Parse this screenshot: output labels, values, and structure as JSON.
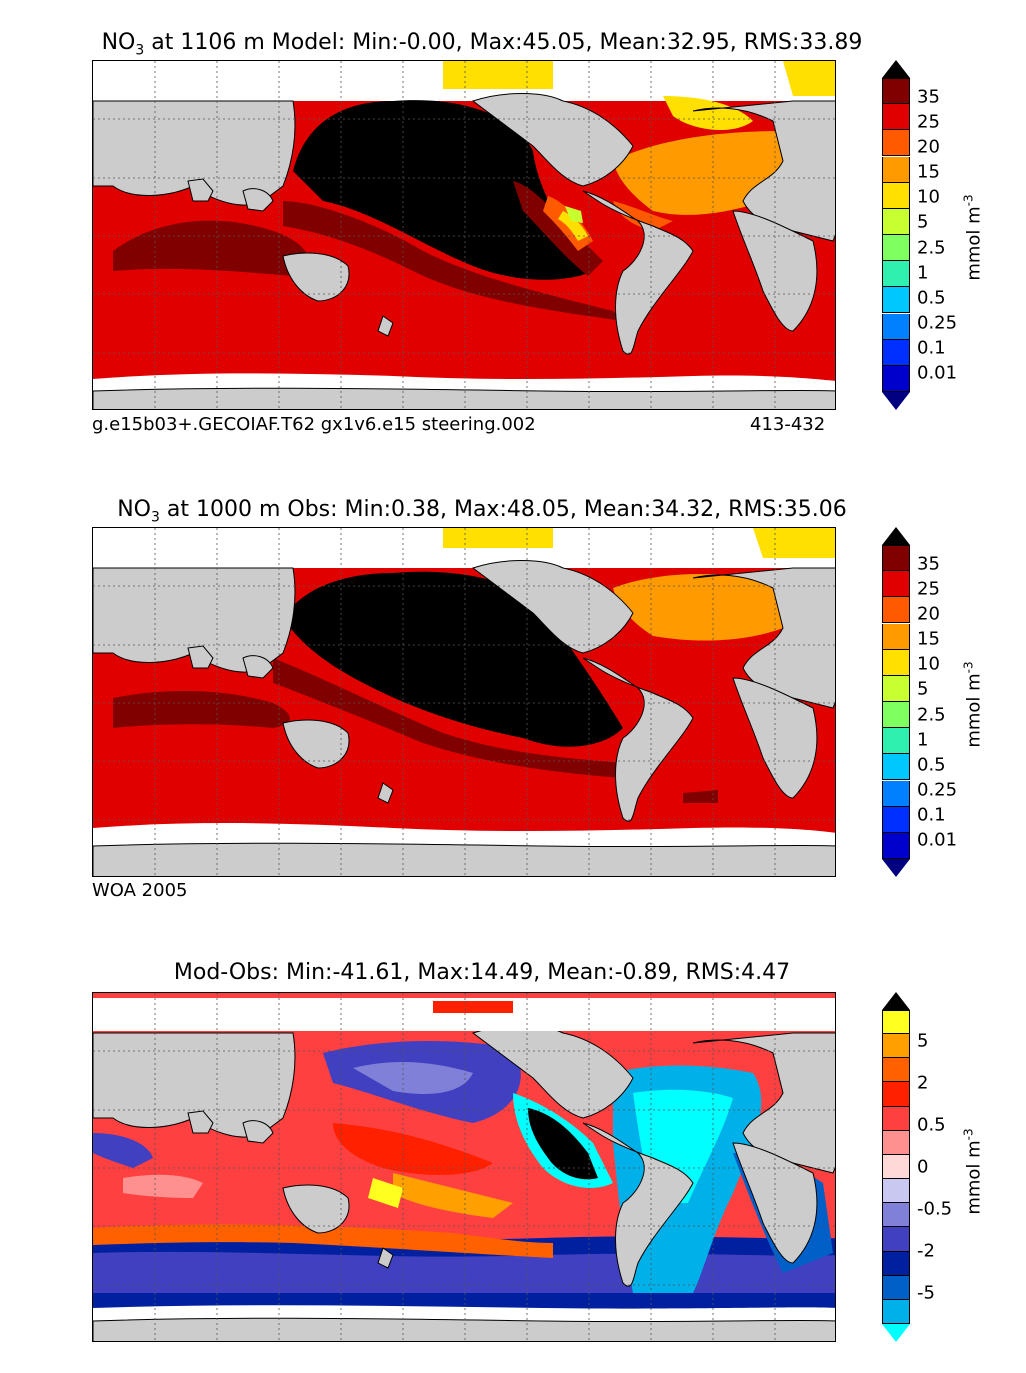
{
  "panels": [
    {
      "title_prefix": "NO",
      "title_sub": "3",
      "title_rest": " at 1106 m Model: Min:-0.00, Max:45.05, Mean:32.95, RMS:33.89",
      "caption_left": "g.e15b03+.GECOIAF.T62 gx1v6.e15 steering.002",
      "caption_right": "413-432",
      "colorbar_ticks": [
        "35",
        "25",
        "20",
        "15",
        "10",
        "5",
        "2.5",
        "1",
        "0.5",
        "0.25",
        "0.1",
        "0.01"
      ],
      "colorbar_unit": "mmol m",
      "colorbar_unit_sup": "-3"
    },
    {
      "title_prefix": "NO",
      "title_sub": "3",
      "title_rest": " at 1000 m Obs: Min:0.38, Max:48.05, Mean:34.32, RMS:35.06",
      "caption_left": "WOA 2005",
      "caption_right": "",
      "colorbar_ticks": [
        "35",
        "25",
        "20",
        "15",
        "10",
        "5",
        "2.5",
        "1",
        "0.5",
        "0.25",
        "0.1",
        "0.01"
      ],
      "colorbar_unit": "mmol m",
      "colorbar_unit_sup": "-3"
    },
    {
      "title_prefix": "",
      "title_sub": "",
      "title_rest": "Mod-Obs: Min:-41.61, Max:14.49, Mean:-0.89, RMS:4.47",
      "caption_left": "",
      "caption_right": "",
      "colorbar_ticks": [
        "5",
        "2",
        "0.5",
        "0",
        "-0.5",
        "-2",
        "-5"
      ],
      "colorbar_unit": "mmol m",
      "colorbar_unit_sup": "-3"
    }
  ],
  "colors": {
    "land": "#cccccc",
    "nodata": "#ffffff",
    "no3_scale": [
      "#000080",
      "#0000cd",
      "#0030ff",
      "#0080ff",
      "#00c8ff",
      "#30f0b0",
      "#80ff60",
      "#c8ff30",
      "#ffe000",
      "#ff9a00",
      "#ff5a00",
      "#e00000",
      "#800000",
      "#000000"
    ],
    "diff_scale": [
      "#00ffff",
      "#00b0e8",
      "#0060c8",
      "#0020a0",
      "#4040c0",
      "#8080d8",
      "#c8c8f0",
      "#ffd8d8",
      "#ff9090",
      "#ff4040",
      "#ff2000",
      "#ff6000",
      "#ffa000",
      "#ffff20",
      "#000000"
    ]
  }
}
